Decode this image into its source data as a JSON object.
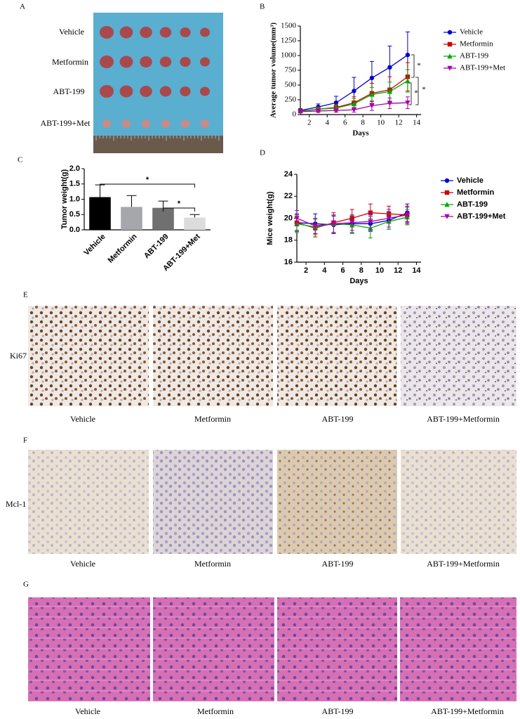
{
  "panels": {
    "A": {
      "letter": "A",
      "row_labels": [
        "Vehicle",
        "Metformin",
        "ABT-199",
        "ABT-199+Met"
      ]
    },
    "E": {
      "letter": "E",
      "stain": "Ki67",
      "labels": [
        "Vehicle",
        "Metformin",
        "ABT-199",
        "ABT-199+Metformin"
      ]
    },
    "F": {
      "letter": "F",
      "stain": "Mcl-1",
      "labels": [
        "Vehicle",
        "Metformin",
        "ABT-199",
        "ABT-199+Metformin"
      ]
    },
    "G": {
      "letter": "G",
      "labels": [
        "Vehicle",
        "Metformin",
        "ABT-199",
        "ABT-199+Metformin"
      ]
    }
  },
  "chart_data": [
    {
      "panel": "B",
      "type": "line",
      "xlabel": "Days",
      "ylabel": "Average tumor volume(mm³)",
      "x": [
        1,
        3,
        5,
        7,
        9,
        11,
        13
      ],
      "xlim": [
        1,
        14.5
      ],
      "xticks": [
        2,
        4,
        6,
        8,
        10,
        12,
        14
      ],
      "ylim": [
        0,
        1500
      ],
      "yticks": [
        0,
        250,
        500,
        750,
        1000,
        1250,
        1500
      ],
      "legend": "right",
      "series": [
        {
          "name": "Vehicle",
          "color": "#0000cc",
          "marker": "circle",
          "values": [
            70,
            130,
            200,
            400,
            620,
            800,
            1010
          ],
          "errors": [
            30,
            50,
            110,
            230,
            280,
            360,
            390
          ]
        },
        {
          "name": "Metformin",
          "color": "#cc0000",
          "marker": "square",
          "values": [
            60,
            90,
            120,
            200,
            360,
            420,
            640
          ],
          "errors": [
            25,
            40,
            60,
            100,
            170,
            220,
            240
          ]
        },
        {
          "name": "ABT-199",
          "color": "#00aa00",
          "marker": "triangle",
          "values": [
            60,
            90,
            110,
            180,
            340,
            390,
            570
          ],
          "errors": [
            25,
            35,
            50,
            90,
            120,
            160,
            190
          ]
        },
        {
          "name": "ABT-199+Met",
          "color": "#aa00aa",
          "marker": "triangle-down",
          "values": [
            50,
            60,
            70,
            80,
            150,
            190,
            200
          ],
          "errors": [
            20,
            25,
            30,
            40,
            80,
            90,
            100
          ]
        }
      ],
      "annotations": [
        "*",
        "*",
        "*"
      ]
    },
    {
      "panel": "C",
      "type": "bar",
      "ylabel": "Tumor weight(g)",
      "categories": [
        "Vehicle",
        "Metformin",
        "ABT-199",
        "ABT-199+Met"
      ],
      "values": [
        1.07,
        0.75,
        0.72,
        0.4
      ],
      "errors": [
        0.4,
        0.37,
        0.22,
        0.1
      ],
      "colors": [
        "#000000",
        "#a6a6ad",
        "#707070",
        "#dcdcdc"
      ],
      "ylim": [
        0,
        2
      ],
      "yticks": [
        {
          "value": 0,
          "label": "0.0"
        },
        0.5,
        {
          "value": 1,
          "label": "1.0"
        },
        1.5,
        {
          "value": 2,
          "label": "2.0"
        }
      ],
      "annotations": [
        "*",
        "*"
      ]
    },
    {
      "panel": "D",
      "type": "line",
      "xlabel": "Days",
      "ylabel": "Mice weight(g)",
      "x": [
        1,
        3,
        5,
        7,
        9,
        11,
        13
      ],
      "xlim": [
        1,
        14.5
      ],
      "xticks": [
        2,
        4,
        6,
        8,
        10,
        12,
        14
      ],
      "ylim": [
        16,
        24
      ],
      "yticks": [
        16,
        18,
        20,
        22,
        24
      ],
      "legend": "right",
      "series": [
        {
          "name": "Vehicle",
          "color": "#0000cc",
          "marker": "circle",
          "values": [
            19.6,
            19.5,
            19.4,
            19.5,
            19.5,
            19.8,
            20.5
          ],
          "errors": [
            0.8,
            0.9,
            0.8,
            0.8,
            0.7,
            0.8,
            0.8
          ]
        },
        {
          "name": "Metformin",
          "color": "#cc0000",
          "marker": "square",
          "values": [
            19.6,
            19.1,
            19.6,
            20.0,
            20.5,
            20.4,
            20.3
          ],
          "errors": [
            0.7,
            0.8,
            0.9,
            0.8,
            0.8,
            0.7,
            0.8
          ]
        },
        {
          "name": "ABT-199",
          "color": "#00aa00",
          "marker": "triangle",
          "values": [
            19.5,
            19.2,
            19.5,
            19.4,
            19.1,
            19.7,
            20.1
          ],
          "errors": [
            0.8,
            0.7,
            0.8,
            0.8,
            0.9,
            0.7,
            0.7
          ]
        },
        {
          "name": "ABT-199+Met",
          "color": "#aa00aa",
          "marker": "triangle-down",
          "values": [
            20.0,
            19.3,
            19.5,
            19.6,
            19.7,
            20.0,
            20.3
          ],
          "errors": [
            0.7,
            0.7,
            0.8,
            0.7,
            0.8,
            0.8,
            0.7
          ]
        }
      ]
    }
  ]
}
